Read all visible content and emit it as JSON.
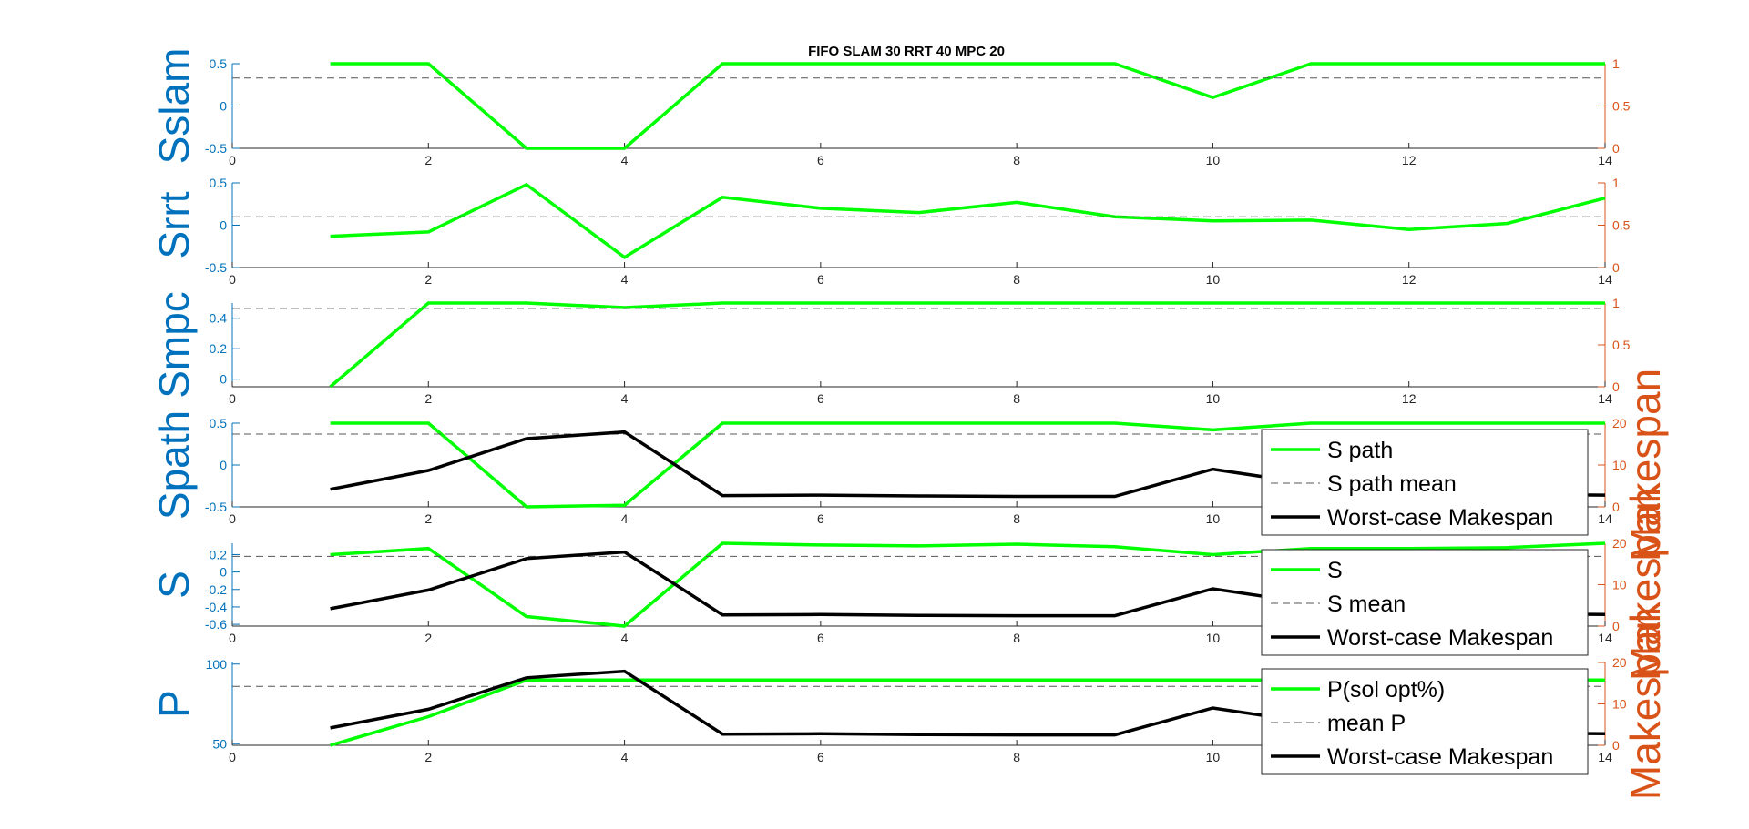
{
  "title": "FIFO SLAM 30 RRT 40 MPC 20",
  "colors": {
    "green": "#00FF00",
    "black": "#000000",
    "mean": "#555555",
    "left_axis": "#0072BD",
    "right_axis": "#D95319"
  },
  "chart_data": [
    {
      "type": "line",
      "ylabel": "Sslam",
      "ylim": [
        -0.5,
        0.5
      ],
      "yticks": [
        "-0.5",
        "0",
        "0.5"
      ],
      "y2lim": [
        0,
        1
      ],
      "y2ticks": [
        "0",
        "0.5",
        "1"
      ],
      "xlim": [
        0,
        14
      ],
      "xticks": [
        "0",
        "2",
        "4",
        "6",
        "8",
        "10",
        "12",
        "14"
      ],
      "x": [
        1,
        2,
        3,
        4,
        5,
        6,
        7,
        8,
        9,
        10,
        11,
        12,
        13,
        14
      ],
      "series": [
        {
          "values": [
            0.5,
            0.5,
            -0.5,
            -0.5,
            0.5,
            0.5,
            0.5,
            0.5,
            0.5,
            0.1,
            0.5,
            0.5,
            0.5,
            0.5
          ],
          "color": "#00FF00",
          "axis": "left"
        },
        {
          "values": [
            0.33,
            0.33
          ],
          "x": [
            0,
            14
          ],
          "style": "dashed",
          "color": "#555555",
          "axis": "left"
        }
      ]
    },
    {
      "type": "line",
      "ylabel": "Srrt",
      "ylim": [
        -0.5,
        0.5
      ],
      "yticks": [
        "-0.5",
        "0",
        "0.5"
      ],
      "y2lim": [
        0,
        1
      ],
      "y2ticks": [
        "0",
        "0.5",
        "1"
      ],
      "xlim": [
        0,
        14
      ],
      "xticks": [
        "0",
        "2",
        "4",
        "6",
        "8",
        "10",
        "12",
        "14"
      ],
      "x": [
        1,
        2,
        3,
        4,
        5,
        6,
        7,
        8,
        9,
        10,
        11,
        12,
        13,
        14
      ],
      "series": [
        {
          "values": [
            -0.13,
            -0.08,
            0.48,
            -0.38,
            0.33,
            0.2,
            0.15,
            0.27,
            0.1,
            0.05,
            0.06,
            -0.05,
            0.02,
            0.32
          ],
          "color": "#00FF00",
          "axis": "left"
        },
        {
          "values": [
            0.1,
            0.1
          ],
          "x": [
            0,
            14
          ],
          "style": "dashed",
          "color": "#555555",
          "axis": "left"
        }
      ]
    },
    {
      "type": "line",
      "ylabel": "Smpc",
      "ylim": [
        -0.05,
        0.5
      ],
      "yticks": [
        "0",
        "0.2",
        "0.4"
      ],
      "y2lim": [
        0,
        1
      ],
      "y2ticks": [
        "0",
        "0.5",
        "1"
      ],
      "xlim": [
        0,
        14
      ],
      "xticks": [
        "0",
        "2",
        "4",
        "6",
        "8",
        "10",
        "12",
        "14"
      ],
      "x": [
        1,
        2,
        3,
        4,
        5,
        6,
        7,
        8,
        9,
        10,
        11,
        12,
        13,
        14
      ],
      "series": [
        {
          "values": [
            -0.05,
            0.5,
            0.5,
            0.47,
            0.5,
            0.5,
            0.5,
            0.5,
            0.5,
            0.5,
            0.5,
            0.5,
            0.5,
            0.5
          ],
          "color": "#00FF00",
          "axis": "left"
        },
        {
          "values": [
            0.465,
            0.465
          ],
          "x": [
            0,
            14
          ],
          "style": "dashed",
          "color": "#555555",
          "axis": "left"
        }
      ]
    },
    {
      "type": "line",
      "ylabel": "Spath",
      "ylim": [
        -0.5,
        0.5
      ],
      "yticks": [
        "-0.5",
        "0",
        "0.5"
      ],
      "y2label": "Makespan",
      "y2lim": [
        0,
        20
      ],
      "y2ticks": [
        "0",
        "10",
        "20"
      ],
      "xlim": [
        0,
        14
      ],
      "xticks": [
        "0",
        "2",
        "4",
        "6",
        "8",
        "10",
        "12",
        "14"
      ],
      "x": [
        1,
        2,
        3,
        4,
        5,
        6,
        7,
        8,
        9,
        10,
        11,
        12,
        13,
        14
      ],
      "legend": {
        "location": "southeast",
        "entries": [
          "S path",
          "S path mean",
          "Worst-case Makespan"
        ]
      },
      "series": [
        {
          "name": "S path",
          "values": [
            0.5,
            0.5,
            -0.5,
            -0.48,
            0.5,
            0.5,
            0.5,
            0.5,
            0.5,
            0.42,
            0.5,
            0.5,
            0.5,
            0.5
          ],
          "color": "#00FF00",
          "axis": "left"
        },
        {
          "name": "S path mean",
          "values": [
            0.37,
            0.37
          ],
          "x": [
            0,
            14
          ],
          "style": "dashed",
          "color": "#555555",
          "axis": "left"
        },
        {
          "name": "Worst-case Makespan",
          "values": [
            4.2,
            8.7,
            16.3,
            17.9,
            2.7,
            2.8,
            2.6,
            2.5,
            2.5,
            9.0,
            5.5,
            3.5,
            3.0,
            2.8
          ],
          "color": "#000000",
          "axis": "right"
        }
      ]
    },
    {
      "type": "line",
      "ylabel": "S",
      "ylim": [
        -0.62,
        0.33
      ],
      "yticks": [
        "-0.6",
        "-0.4",
        "-0.2",
        "0",
        "0.2"
      ],
      "y2lim": [
        0,
        20
      ],
      "y2ticks": [
        "0",
        "10",
        "20"
      ],
      "xlim": [
        0,
        14
      ],
      "xticks": [
        "0",
        "2",
        "4",
        "6",
        "8",
        "10",
        "12",
        "14"
      ],
      "x": [
        1,
        2,
        3,
        4,
        5,
        6,
        7,
        8,
        9,
        10,
        11,
        12,
        13,
        14
      ],
      "legend": {
        "location": "southeast",
        "entries": [
          "S",
          "S mean",
          "Worst-case Makespan"
        ]
      },
      "series": [
        {
          "name": "S",
          "values": [
            0.2,
            0.27,
            -0.51,
            -0.62,
            0.33,
            0.31,
            0.3,
            0.32,
            0.29,
            0.2,
            0.27,
            0.27,
            0.28,
            0.33
          ],
          "color": "#00FF00",
          "axis": "left"
        },
        {
          "name": "S mean",
          "values": [
            0.18,
            0.18
          ],
          "x": [
            0,
            14
          ],
          "style": "dashed",
          "color": "#555555",
          "axis": "left"
        },
        {
          "name": "Worst-case Makespan",
          "values": [
            4.2,
            8.7,
            16.3,
            17.9,
            2.7,
            2.8,
            2.6,
            2.5,
            2.5,
            9.0,
            5.5,
            3.5,
            3.0,
            2.8
          ],
          "color": "#000000",
          "axis": "right"
        }
      ]
    },
    {
      "type": "line",
      "ylabel": "P",
      "ylim": [
        49,
        101
      ],
      "yticks": [
        "50",
        "100"
      ],
      "y2lim": [
        0,
        20
      ],
      "y2ticks": [
        "0",
        "10",
        "20"
      ],
      "xlim": [
        0,
        14
      ],
      "xticks": [
        "0",
        "2",
        "4",
        "6",
        "8",
        "10",
        "12",
        "14"
      ],
      "x": [
        1,
        2,
        3,
        4,
        5,
        6,
        7,
        8,
        9,
        10,
        11,
        12,
        13,
        14
      ],
      "legend": {
        "location": "southeast",
        "entries": [
          "P(sol opt%)",
          "mean P",
          "Worst-case Makespan"
        ]
      },
      "series": [
        {
          "name": "P(sol opt%)",
          "values": [
            49,
            67,
            90,
            90,
            90,
            90,
            90,
            90,
            90,
            90,
            90,
            90,
            90,
            90
          ],
          "color": "#00FF00",
          "axis": "left"
        },
        {
          "name": "mean P",
          "values": [
            86,
            86
          ],
          "x": [
            0,
            14
          ],
          "style": "dashed",
          "color": "#555555",
          "axis": "left"
        },
        {
          "name": "Worst-case Makespan",
          "values": [
            4.2,
            8.7,
            16.3,
            17.9,
            2.7,
            2.8,
            2.6,
            2.5,
            2.5,
            9.0,
            5.5,
            3.5,
            3.0,
            2.8
          ],
          "color": "#000000",
          "axis": "right"
        }
      ]
    }
  ],
  "right_axis_labels": [
    "Makespan",
    "Makespan",
    "Makespan"
  ]
}
